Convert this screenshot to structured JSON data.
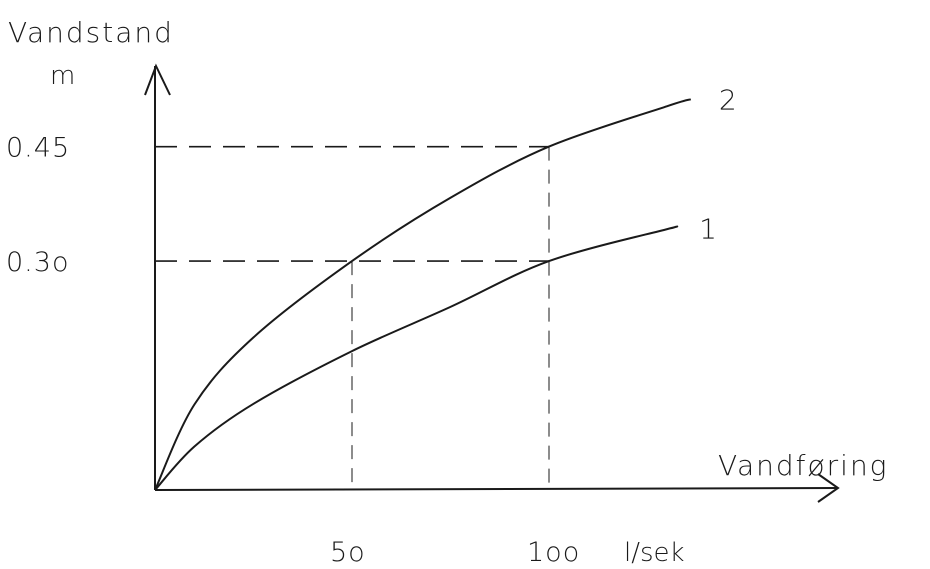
{
  "chart_data": {
    "type": "line",
    "title": "",
    "ylabel": "Vandstand",
    "yunit": "m",
    "xlabel": "Vandføring",
    "xunit": "l/sek",
    "x_ticks": [
      {
        "value": 50,
        "label": "5o"
      },
      {
        "value": 100,
        "label": "1oo"
      }
    ],
    "y_ticks": [
      {
        "value": 0.3,
        "label": "0.3o"
      },
      {
        "value": 0.45,
        "label": "0.45"
      }
    ],
    "xlim": [
      0,
      170
    ],
    "ylim": [
      0,
      0.53
    ],
    "grid": false,
    "series": [
      {
        "name": "1",
        "x": [
          0,
          10,
          25,
          50,
          75,
          100,
          130,
          131
        ],
        "y": [
          0,
          0.057,
          0.113,
          0.182,
          0.24,
          0.3,
          0.342,
          0.343
        ]
      },
      {
        "name": "2",
        "x": [
          0,
          10,
          25,
          50,
          75,
          100,
          130,
          136
        ],
        "y": [
          0,
          0.112,
          0.2,
          0.3,
          0.383,
          0.45,
          0.503,
          0.512
        ]
      }
    ],
    "guide_lines": [
      {
        "x": 50,
        "y": 0.3
      },
      {
        "x": 100,
        "y": 0.3
      },
      {
        "x": 100,
        "y": 0.45
      }
    ]
  }
}
